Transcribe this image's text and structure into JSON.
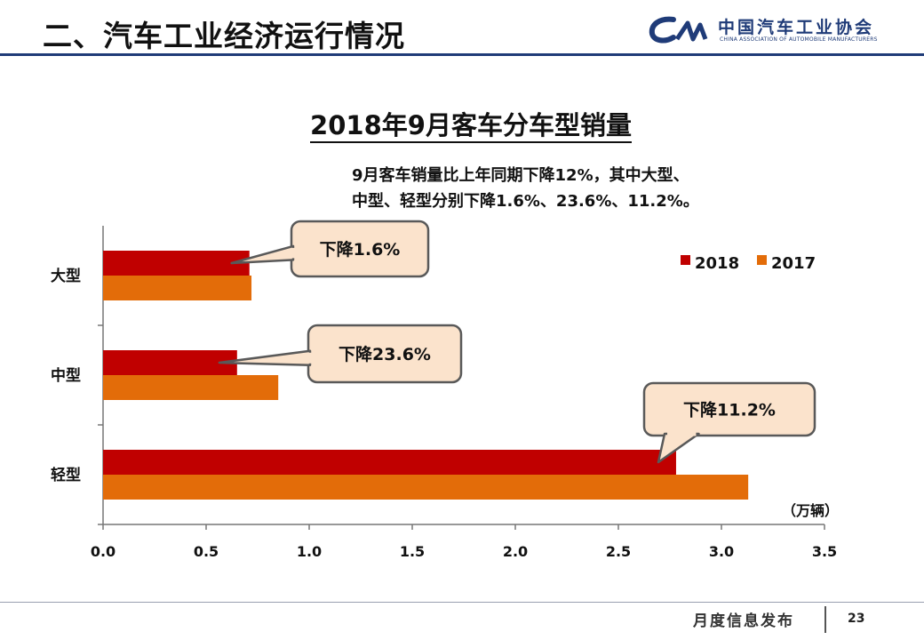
{
  "header": {
    "title": "二、汽车工业经济运行情况"
  },
  "logo": {
    "name_cn": "中国汽车工业协会",
    "name_en": "CHINA ASSOCIATION OF AUTOMOBILE MANUFACTURERS"
  },
  "note": {
    "line1": "9月客车销量比上年同期下降12%，其中大型、",
    "line2": "中型、轻型分别下降1.6%、23.6%、11.2%。"
  },
  "footer": {
    "text": "月度信息发布",
    "page": "23"
  },
  "colors": {
    "series_2018": "#c00000",
    "series_2017": "#e36c09",
    "header_rule": "#1f3b78",
    "callout_fill": "#fbe3cc",
    "callout_stroke": "#595959"
  },
  "chart_data": {
    "type": "bar",
    "orientation": "horizontal",
    "title": "2018年9月客车分车型销量",
    "unit": "（万辆）",
    "categories": [
      "大型",
      "中型",
      "轻型"
    ],
    "series": [
      {
        "name": "2018",
        "values": [
          0.71,
          0.65,
          2.78
        ]
      },
      {
        "name": "2017",
        "values": [
          0.72,
          0.85,
          3.13
        ]
      }
    ],
    "xlim": [
      0,
      3.5
    ],
    "xticks": [
      "0.0",
      "0.5",
      "1.0",
      "1.5",
      "2.0",
      "2.5",
      "3.0",
      "3.5"
    ],
    "legend_position": "top-right",
    "grid": false,
    "annotations": [
      {
        "category": "大型",
        "text": "下降1.6%"
      },
      {
        "category": "中型",
        "text": "下降23.6%"
      },
      {
        "category": "轻型",
        "text": "下降11.2%"
      }
    ]
  }
}
